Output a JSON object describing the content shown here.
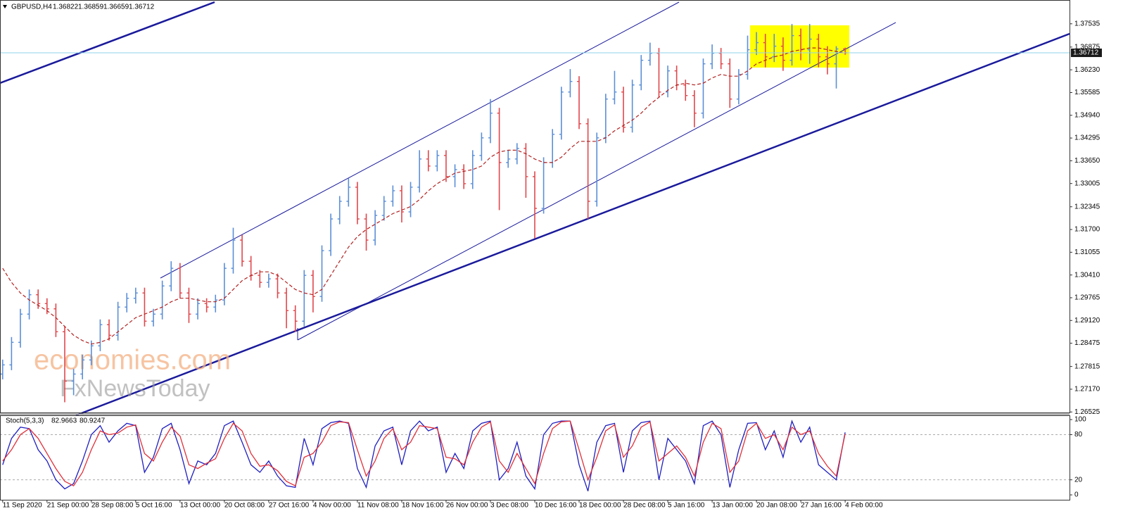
{
  "chart_data": [
    {
      "type": "ohlc",
      "symbol": "GBPUSD,H4",
      "open": [
        1.276,
        1.2786,
        1.285,
        1.293,
        1.2985,
        1.296,
        1.2945,
        1.288,
        1.274,
        1.276,
        1.28,
        1.284,
        1.29,
        1.287,
        1.295,
        1.2975,
        1.299,
        1.291,
        1.293,
        1.301,
        1.306,
        1.299,
        1.293,
        1.296,
        1.295,
        1.297,
        1.306,
        1.314,
        1.308,
        1.304,
        1.302,
        1.303,
        1.299,
        1.294,
        1.291,
        1.304,
        1.298,
        1.311,
        1.32,
        1.325,
        1.329,
        1.32,
        1.314,
        1.321,
        1.325,
        1.328,
        1.322,
        1.329,
        1.337,
        1.335,
        1.338,
        1.332,
        1.334,
        1.33,
        1.338,
        1.343,
        1.35,
        1.336,
        1.337,
        1.34,
        1.332,
        1.323,
        1.336,
        1.344,
        1.356,
        1.359,
        1.347,
        1.325,
        1.343,
        1.354,
        1.356,
        1.346,
        1.358,
        1.365,
        1.367,
        1.356,
        1.362,
        1.358,
        1.355,
        1.35,
        1.364,
        1.367,
        1.364,
        1.354,
        1.361,
        1.368,
        1.37,
        1.366,
        1.369,
        1.365,
        1.372,
        1.368,
        1.371,
        1.366,
        1.364,
        1.36822
      ],
      "high": [
        1.2801,
        1.2865,
        1.2945,
        1.3,
        1.3,
        1.2975,
        1.296,
        1.2895,
        1.2775,
        1.2815,
        1.2855,
        1.2915,
        1.2915,
        1.2965,
        1.299,
        1.3005,
        1.3005,
        1.2945,
        1.3025,
        1.308,
        1.3075,
        1.3005,
        1.2975,
        1.2975,
        1.2985,
        1.3075,
        1.3175,
        1.3155,
        1.3095,
        1.3055,
        1.3045,
        1.3045,
        1.3005,
        1.2955,
        1.3055,
        1.3055,
        1.3125,
        1.3215,
        1.3265,
        1.3315,
        1.3305,
        1.3215,
        1.3225,
        1.3265,
        1.3295,
        1.3295,
        1.3305,
        1.3395,
        1.3395,
        1.3395,
        1.3395,
        1.3355,
        1.3355,
        1.3395,
        1.3445,
        1.354,
        1.3515,
        1.3395,
        1.3415,
        1.3415,
        1.3335,
        1.3375,
        1.3455,
        1.3575,
        1.3625,
        1.3605,
        1.3485,
        1.3445,
        1.3555,
        1.362,
        1.3575,
        1.3595,
        1.3665,
        1.37,
        1.3685,
        1.3635,
        1.3635,
        1.3595,
        1.3565,
        1.3655,
        1.3695,
        1.3685,
        1.3655,
        1.3625,
        1.372,
        1.373,
        1.3725,
        1.3725,
        1.3715,
        1.3753,
        1.374,
        1.3753,
        1.3725,
        1.369,
        1.369,
        1.36859
      ],
      "low": [
        1.2745,
        1.2771,
        1.2835,
        1.2915,
        1.2945,
        1.293,
        1.2865,
        1.268,
        1.27,
        1.2745,
        1.2785,
        1.2825,
        1.2855,
        1.2855,
        1.2935,
        1.296,
        1.2895,
        1.2895,
        1.2915,
        1.2995,
        1.2975,
        1.2905,
        1.2915,
        1.2935,
        1.2935,
        1.2955,
        1.3045,
        1.3065,
        1.3025,
        1.3005,
        1.3005,
        1.2975,
        1.289,
        1.288,
        1.2895,
        1.2935,
        1.2965,
        1.3095,
        1.3185,
        1.3235,
        1.3185,
        1.311,
        1.3125,
        1.3195,
        1.3235,
        1.319,
        1.3205,
        1.3275,
        1.3335,
        1.3335,
        1.3305,
        1.329,
        1.3285,
        1.3285,
        1.3365,
        1.3415,
        1.3225,
        1.3345,
        1.3355,
        1.326,
        1.3145,
        1.3215,
        1.3345,
        1.3425,
        1.3545,
        1.3455,
        1.32,
        1.3235,
        1.3415,
        1.3525,
        1.3445,
        1.3445,
        1.3565,
        1.3635,
        1.3545,
        1.3545,
        1.3565,
        1.3535,
        1.346,
        1.3485,
        1.3625,
        1.3625,
        1.3515,
        1.3525,
        1.3595,
        1.3665,
        1.363,
        1.3645,
        1.362,
        1.3635,
        1.365,
        1.364,
        1.363,
        1.361,
        1.357,
        1.36659
      ],
      "close": [
        1.2786,
        1.285,
        1.293,
        1.2985,
        1.296,
        1.2945,
        1.288,
        1.274,
        1.276,
        1.28,
        1.284,
        1.29,
        1.287,
        1.295,
        1.2975,
        1.299,
        1.291,
        1.293,
        1.301,
        1.306,
        1.299,
        1.293,
        1.296,
        1.295,
        1.297,
        1.306,
        1.314,
        1.308,
        1.304,
        1.302,
        1.303,
        1.299,
        1.294,
        1.291,
        1.304,
        1.298,
        1.311,
        1.32,
        1.325,
        1.329,
        1.32,
        1.314,
        1.321,
        1.325,
        1.328,
        1.322,
        1.329,
        1.337,
        1.335,
        1.338,
        1.332,
        1.334,
        1.33,
        1.338,
        1.343,
        1.35,
        1.336,
        1.337,
        1.34,
        1.332,
        1.323,
        1.336,
        1.344,
        1.356,
        1.359,
        1.347,
        1.325,
        1.343,
        1.354,
        1.356,
        1.346,
        1.358,
        1.365,
        1.367,
        1.356,
        1.362,
        1.358,
        1.355,
        1.35,
        1.364,
        1.367,
        1.364,
        1.354,
        1.361,
        1.368,
        1.37,
        1.366,
        1.369,
        1.365,
        1.372,
        1.368,
        1.371,
        1.366,
        1.364,
        1.36822,
        1.36712
      ],
      "up_color": "#5b8fd6",
      "down_color": "#e0474c",
      "ma": {
        "color": "#b22222",
        "values": [
          1.306,
          1.302,
          1.299,
          1.297,
          1.2955,
          1.294,
          1.292,
          1.2895,
          1.287,
          1.2855,
          1.2845,
          1.285,
          1.286,
          1.288,
          1.29,
          1.292,
          1.293,
          1.294,
          1.295,
          1.2965,
          1.2975,
          1.2975,
          1.297,
          1.2965,
          1.2965,
          1.2975,
          1.3,
          1.3025,
          1.304,
          1.305,
          1.305,
          1.304,
          1.302,
          1.3,
          1.299,
          1.2985,
          1.3,
          1.304,
          1.308,
          1.312,
          1.315,
          1.317,
          1.3185,
          1.32,
          1.3215,
          1.3225,
          1.3235,
          1.3255,
          1.328,
          1.33,
          1.3315,
          1.333,
          1.3335,
          1.334,
          1.335,
          1.3375,
          1.339,
          1.3395,
          1.3395,
          1.3385,
          1.337,
          1.336,
          1.336,
          1.3375,
          1.34,
          1.342,
          1.342,
          1.342,
          1.343,
          1.345,
          1.3465,
          1.348,
          1.35,
          1.3525,
          1.3545,
          1.3565,
          1.358,
          1.3585,
          1.358,
          1.3585,
          1.36,
          1.361,
          1.3605,
          1.3605,
          1.362,
          1.364,
          1.365,
          1.366,
          1.3665,
          1.3675,
          1.368,
          1.3685,
          1.3685,
          1.368,
          1.3675,
          1.367
        ]
      },
      "current_price_color": "#8fd3ea",
      "ylim": [
        1.2649,
        1.3821
      ],
      "xlim": [
        -0.3,
        120.3
      ],
      "yticks": [
        1.37535,
        1.36875,
        {
          "value": 1.3623,
          "label": "1.36230"
        },
        1.35585,
        {
          "value": 1.3494,
          "label": "1.34940"
        },
        1.34295,
        {
          "value": 1.3365,
          "label": "1.33650"
        },
        1.33005,
        1.32345,
        {
          "value": 1.317,
          "label": "1.31700"
        },
        1.31055,
        {
          "value": 1.3041,
          "label": "1.30410"
        },
        1.29765,
        {
          "value": 1.2912,
          "label": "1.29120"
        },
        1.28475,
        1.27815,
        {
          "value": 1.2717,
          "label": "1.27170"
        },
        1.26525
      ],
      "watermark": [
        "economies.com",
        "FxNewsToday"
      ]
    },
    {
      "type": "line",
      "title": "Stoch(5,3,3)",
      "series": [
        {
          "color": "#1f1fbf",
          "values": [
            40,
            75,
            90,
            88,
            60,
            45,
            20,
            8,
            15,
            45,
            80,
            92,
            70,
            85,
            95,
            92,
            30,
            50,
            88,
            95,
            60,
            15,
            45,
            40,
            55,
            92,
            98,
            70,
            40,
            30,
            45,
            25,
            12,
            10,
            75,
            40,
            88,
            96,
            98,
            95,
            35,
            10,
            65,
            85,
            90,
            40,
            85,
            98,
            85,
            90,
            30,
            55,
            35,
            85,
            95,
            98,
            20,
            35,
            70,
            25,
            8,
            80,
            95,
            98,
            98,
            40,
            5,
            70,
            92,
            95,
            30,
            85,
            96,
            98,
            20,
            75,
            60,
            45,
            15,
            92,
            98,
            80,
            10,
            60,
            95,
            96,
            60,
            85,
            50,
            98,
            70,
            90,
            40,
            30,
            20,
            82.9663
          ]
        },
        {
          "color": "#e0303a",
          "values": [
            45,
            60,
            80,
            88,
            75,
            55,
            35,
            18,
            12,
            30,
            60,
            85,
            80,
            82,
            90,
            93,
            55,
            45,
            70,
            90,
            78,
            40,
            35,
            42,
            48,
            75,
            95,
            85,
            55,
            38,
            40,
            32,
            18,
            12,
            50,
            55,
            70,
            92,
            97,
            96,
            60,
            25,
            45,
            75,
            88,
            60,
            70,
            92,
            90,
            88,
            50,
            48,
            40,
            70,
            90,
            97,
            45,
            30,
            55,
            35,
            15,
            55,
            88,
            97,
            98,
            60,
            20,
            50,
            85,
            93,
            50,
            65,
            90,
            97,
            45,
            55,
            65,
            50,
            25,
            70,
            95,
            88,
            30,
            45,
            85,
            95,
            75,
            80,
            60,
            90,
            80,
            85,
            55,
            38,
            25,
            80.9247
          ]
        }
      ],
      "ylim": [
        -6.5,
        105.7
      ],
      "yticks": [
        100,
        80,
        20,
        0
      ],
      "levels": [
        80,
        20
      ],
      "xlim": [
        -0.3,
        120.3
      ],
      "xticks": [
        {
          "value": 0,
          "label": "11 Sep 2020"
        },
        {
          "value": 5,
          "label": "21 Sep 00:00"
        },
        {
          "value": 10,
          "label": "28 Sep 08:00"
        },
        {
          "value": 15,
          "label": "5 Oct 16:00"
        },
        {
          "value": 20,
          "label": "13 Oct 00:00"
        },
        {
          "value": 25,
          "label": "20 Oct 08:00"
        },
        {
          "value": 30,
          "label": "27 Oct 16:00"
        },
        {
          "value": 35,
          "label": "4 Nov 00:00"
        },
        {
          "value": 40,
          "label": "11 Nov 08:00"
        },
        {
          "value": 45,
          "label": "18 Nov 16:00"
        },
        {
          "value": 50,
          "label": "26 Nov 00:00"
        },
        {
          "value": 55,
          "label": "3 Dec 08:00"
        },
        {
          "value": 60,
          "label": "10 Dec 16:00"
        },
        {
          "value": 65,
          "label": "18 Dec 00:00"
        },
        {
          "value": 70,
          "label": "28 Dec 08:00"
        },
        {
          "value": 75,
          "label": "5 Jan 16:00"
        },
        {
          "value": 80,
          "label": "13 Jan 00:00"
        },
        {
          "value": 85,
          "label": "20 Jan 08:00"
        },
        {
          "value": 90,
          "label": "27 Jan 16:00"
        },
        {
          "value": 95,
          "label": "4 Feb 00:00"
        }
      ]
    }
  ]
}
